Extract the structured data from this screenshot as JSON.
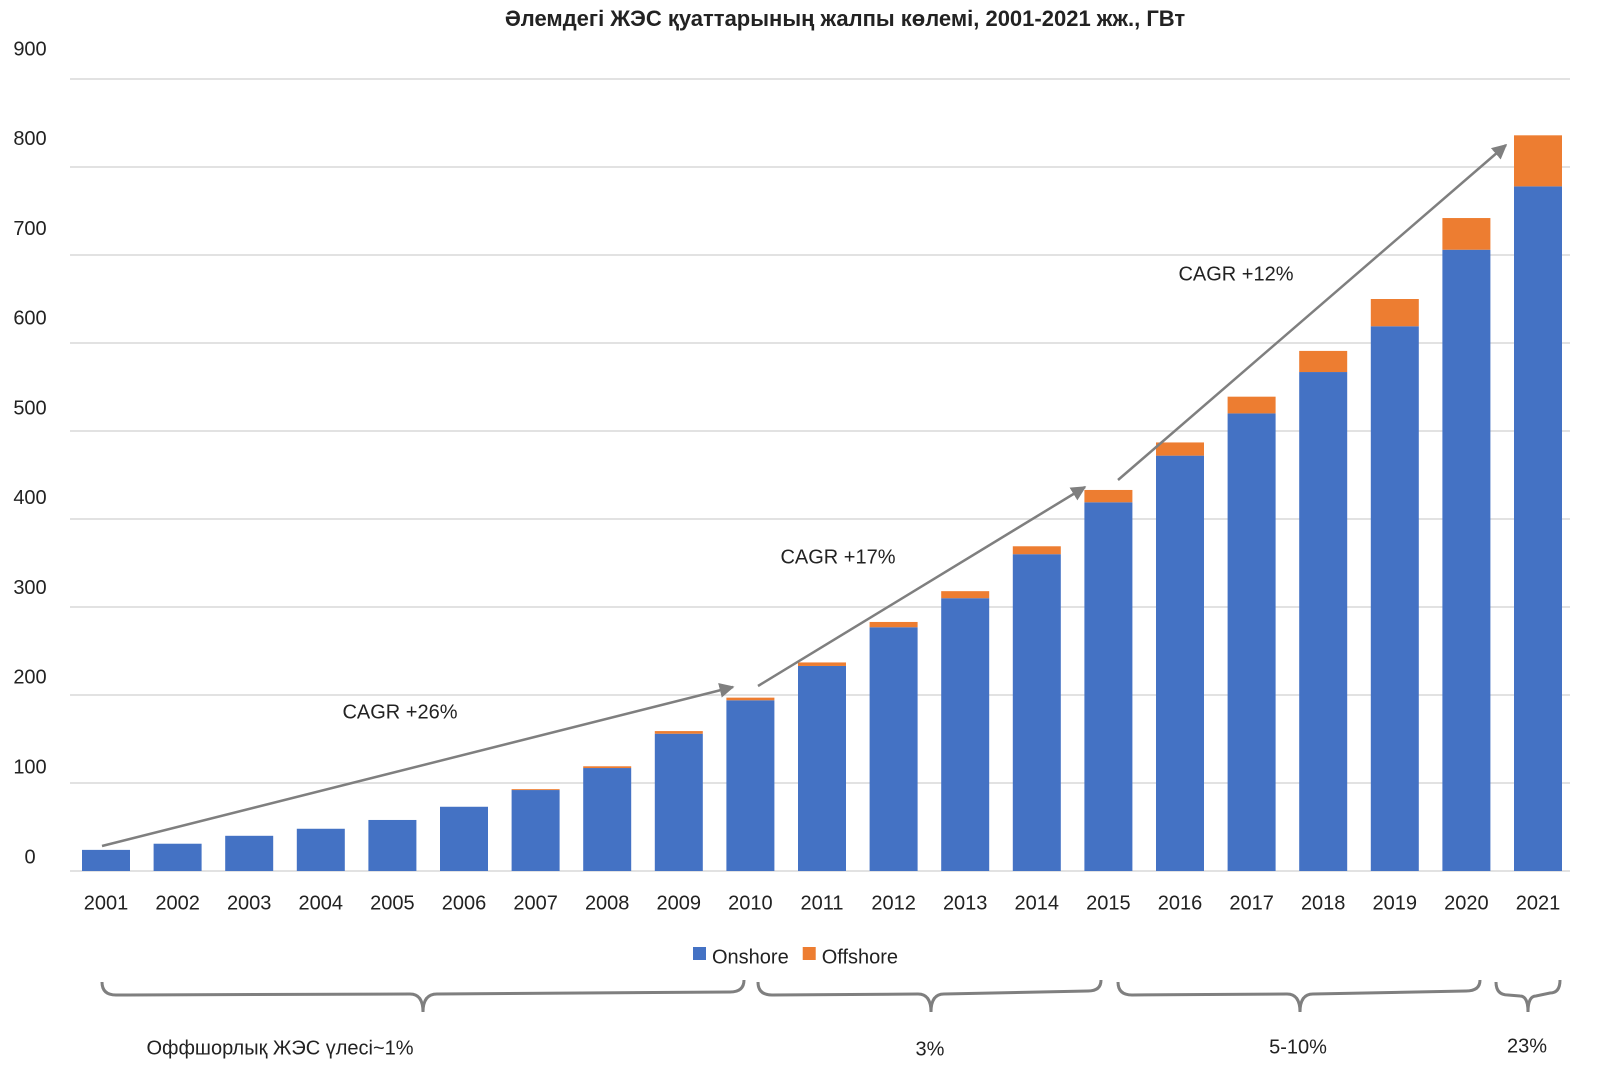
{
  "chart_data": {
    "type": "bar",
    "stacked": true,
    "title": "Әлемдегі ЖЭС қуаттарының жалпы көлемі, 2001-2021 жж., ГВт",
    "categories": [
      "2001",
      "2002",
      "2003",
      "2004",
      "2005",
      "2006",
      "2007",
      "2008",
      "2009",
      "2010",
      "2011",
      "2012",
      "2013",
      "2014",
      "2015",
      "2016",
      "2017",
      "2018",
      "2019",
      "2020",
      "2021"
    ],
    "series": [
      {
        "name": "Onshore",
        "color": "#4472c4",
        "values": [
          24,
          31,
          40,
          48,
          58,
          73,
          92,
          117,
          156,
          194,
          233,
          277,
          310,
          360,
          419,
          472,
          520,
          567,
          619,
          706,
          778
        ]
      },
      {
        "name": "Offshore",
        "color": "#ed7d31",
        "values": [
          0,
          0,
          0,
          0,
          0,
          0,
          1,
          2,
          3,
          3,
          4,
          6,
          8,
          9,
          14,
          15,
          19,
          24,
          31,
          36,
          58
        ]
      }
    ],
    "ylim": [
      0,
      900
    ],
    "yticks": [
      0,
      100,
      200,
      300,
      400,
      500,
      600,
      700,
      800,
      900
    ],
    "grid": true,
    "legend": "bottom",
    "annotations": [
      "CAGR +26%",
      "CAGR +17%",
      "CAGR +12%"
    ],
    "share_labels": [
      "Оффшорлық ЖЭС үлесі~1%",
      "3%",
      "5-10%",
      "23%"
    ]
  }
}
